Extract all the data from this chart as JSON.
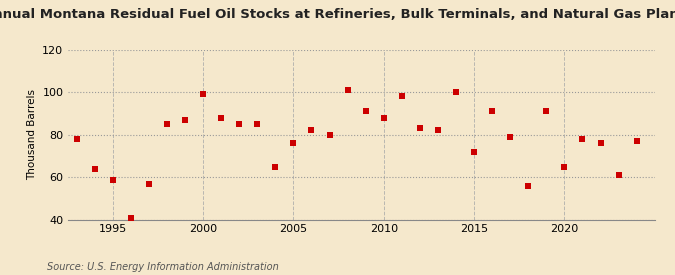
{
  "title": "Annual Montana Residual Fuel Oil Stocks at Refineries, Bulk Terminals, and Natural Gas Plants",
  "ylabel": "Thousand Barrels",
  "source": "Source: U.S. Energy Information Administration",
  "background_color": "#f5e8cc",
  "plot_background_color": "#f5e8cc",
  "marker_color": "#cc0000",
  "marker_size": 18,
  "xlim": [
    1992.5,
    2025
  ],
  "ylim": [
    40,
    120
  ],
  "yticks": [
    40,
    60,
    80,
    100,
    120
  ],
  "xticks": [
    1995,
    2000,
    2005,
    2010,
    2015,
    2020
  ],
  "years": [
    1993,
    1994,
    1995,
    1996,
    1997,
    1998,
    1999,
    2000,
    2001,
    2002,
    2003,
    2004,
    2005,
    2006,
    2007,
    2008,
    2009,
    2010,
    2011,
    2012,
    2013,
    2014,
    2015,
    2016,
    2017,
    2018,
    2019,
    2020,
    2021,
    2022,
    2023,
    2024
  ],
  "values": [
    78,
    64,
    59,
    41,
    57,
    85,
    87,
    99,
    88,
    85,
    85,
    65,
    76,
    82,
    80,
    101,
    91,
    88,
    98,
    83,
    82,
    100,
    72,
    91,
    79,
    56,
    91,
    65,
    78,
    76,
    61,
    77
  ]
}
